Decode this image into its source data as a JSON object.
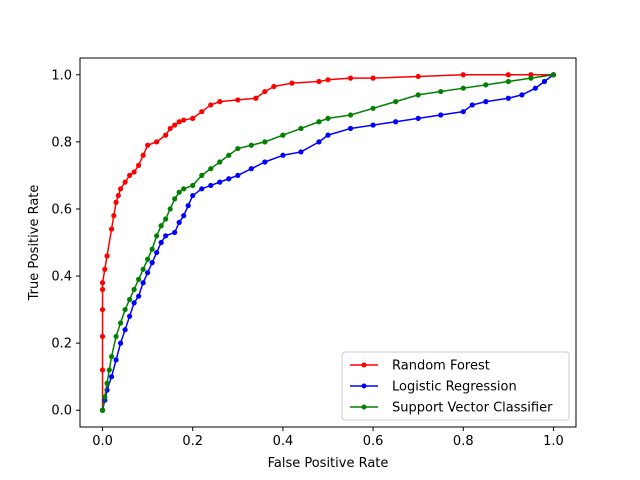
{
  "chart_data": {
    "type": "line",
    "title": "",
    "xlabel": "False Positive Rate",
    "ylabel": "True Positive Rate",
    "xlim": [
      -0.05,
      1.05
    ],
    "ylim": [
      -0.05,
      1.05
    ],
    "xticks": [
      "0.0",
      "0.2",
      "0.4",
      "0.6",
      "0.8",
      "1.0"
    ],
    "yticks": [
      "0.0",
      "0.2",
      "0.4",
      "0.6",
      "0.8",
      "1.0"
    ],
    "grid": false,
    "legend_position": "lower-right",
    "marker": "circle",
    "series": [
      {
        "name": "Random Forest",
        "color": "#ff0000",
        "x": [
          0.0,
          0.0,
          0.0,
          0.0,
          0.0,
          0.0,
          0.005,
          0.01,
          0.02,
          0.025,
          0.03,
          0.035,
          0.04,
          0.05,
          0.06,
          0.07,
          0.08,
          0.09,
          0.1,
          0.12,
          0.14,
          0.15,
          0.16,
          0.17,
          0.18,
          0.2,
          0.22,
          0.24,
          0.26,
          0.3,
          0.34,
          0.36,
          0.38,
          0.42,
          0.48,
          0.5,
          0.55,
          0.6,
          0.7,
          0.8,
          0.9,
          0.95,
          1.0
        ],
        "y": [
          0.0,
          0.12,
          0.22,
          0.3,
          0.36,
          0.38,
          0.42,
          0.46,
          0.54,
          0.58,
          0.62,
          0.64,
          0.66,
          0.68,
          0.7,
          0.71,
          0.73,
          0.76,
          0.79,
          0.8,
          0.82,
          0.84,
          0.85,
          0.86,
          0.865,
          0.87,
          0.89,
          0.91,
          0.92,
          0.925,
          0.93,
          0.95,
          0.965,
          0.975,
          0.98,
          0.985,
          0.99,
          0.99,
          0.995,
          1.0,
          1.0,
          1.0,
          1.0
        ]
      },
      {
        "name": "Logistic Regression",
        "color": "#0000ff",
        "x": [
          0.0,
          0.005,
          0.01,
          0.02,
          0.03,
          0.04,
          0.05,
          0.06,
          0.07,
          0.08,
          0.09,
          0.1,
          0.11,
          0.12,
          0.13,
          0.14,
          0.16,
          0.17,
          0.18,
          0.19,
          0.2,
          0.22,
          0.24,
          0.26,
          0.28,
          0.3,
          0.33,
          0.36,
          0.4,
          0.44,
          0.48,
          0.5,
          0.55,
          0.6,
          0.65,
          0.7,
          0.75,
          0.8,
          0.82,
          0.85,
          0.9,
          0.93,
          0.96,
          0.98,
          1.0
        ],
        "y": [
          0.0,
          0.03,
          0.06,
          0.1,
          0.15,
          0.2,
          0.24,
          0.28,
          0.32,
          0.34,
          0.38,
          0.41,
          0.44,
          0.47,
          0.5,
          0.52,
          0.53,
          0.56,
          0.58,
          0.61,
          0.64,
          0.66,
          0.67,
          0.68,
          0.69,
          0.7,
          0.72,
          0.74,
          0.76,
          0.77,
          0.8,
          0.82,
          0.84,
          0.85,
          0.86,
          0.87,
          0.88,
          0.89,
          0.91,
          0.92,
          0.93,
          0.94,
          0.96,
          0.98,
          1.0
        ]
      },
      {
        "name": "Support Vector Classifier",
        "color": "#008000",
        "x": [
          0.0,
          0.005,
          0.01,
          0.015,
          0.02,
          0.03,
          0.04,
          0.05,
          0.06,
          0.07,
          0.08,
          0.09,
          0.1,
          0.11,
          0.12,
          0.13,
          0.14,
          0.15,
          0.16,
          0.17,
          0.18,
          0.2,
          0.22,
          0.24,
          0.26,
          0.28,
          0.3,
          0.33,
          0.36,
          0.4,
          0.44,
          0.48,
          0.5,
          0.55,
          0.6,
          0.65,
          0.7,
          0.75,
          0.8,
          0.85,
          0.9,
          0.95,
          1.0
        ],
        "y": [
          0.0,
          0.04,
          0.08,
          0.12,
          0.16,
          0.22,
          0.26,
          0.3,
          0.33,
          0.36,
          0.39,
          0.42,
          0.45,
          0.48,
          0.52,
          0.55,
          0.57,
          0.6,
          0.63,
          0.65,
          0.66,
          0.67,
          0.7,
          0.72,
          0.74,
          0.76,
          0.78,
          0.79,
          0.8,
          0.82,
          0.84,
          0.86,
          0.87,
          0.88,
          0.9,
          0.92,
          0.94,
          0.95,
          0.96,
          0.97,
          0.98,
          0.99,
          1.0
        ]
      }
    ]
  }
}
